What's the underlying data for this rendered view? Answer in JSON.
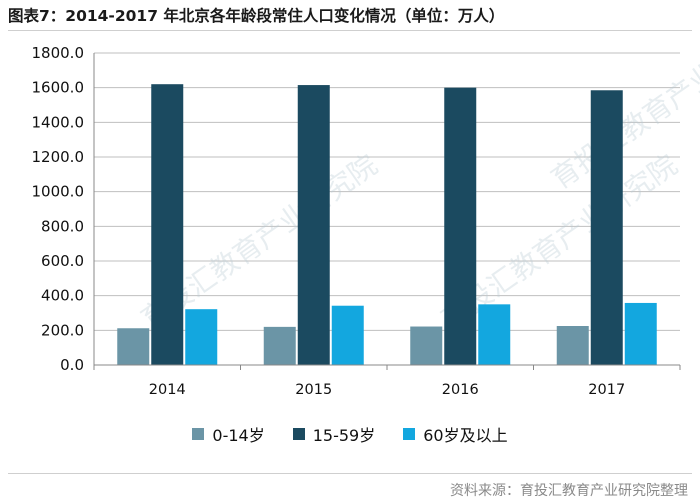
{
  "title": "图表7：2014-2017 年北京各年龄段常住人口变化情况（单位：万人）",
  "source": "资料来源：育投汇教育产业研究院整理",
  "watermark": "育投汇教育产业研究院",
  "colors": {
    "series_0_14": "#6b95a6",
    "series_15_59": "#1b4a60",
    "series_60_plus": "#13a7df",
    "grid": "#bfbfbf",
    "axis": "#888888"
  },
  "chart_data": {
    "type": "bar",
    "categories": [
      "2014",
      "2015",
      "2016",
      "2017"
    ],
    "series": [
      {
        "name": "0-14岁",
        "values": [
          212,
          220,
          222,
          225
        ]
      },
      {
        "name": "15-59岁",
        "values": [
          1620,
          1615,
          1600,
          1585
        ]
      },
      {
        "name": "60岁及以上",
        "values": [
          322,
          342,
          350,
          358
        ]
      }
    ],
    "yticks": [
      "0.0",
      "200.0",
      "400.0",
      "600.0",
      "800.0",
      "1000.0",
      "1200.0",
      "1400.0",
      "1600.0",
      "1800.0"
    ],
    "ylim": [
      0,
      1800
    ],
    "grid": true,
    "legend_position": "bottom",
    "xlabel": "",
    "ylabel": ""
  }
}
